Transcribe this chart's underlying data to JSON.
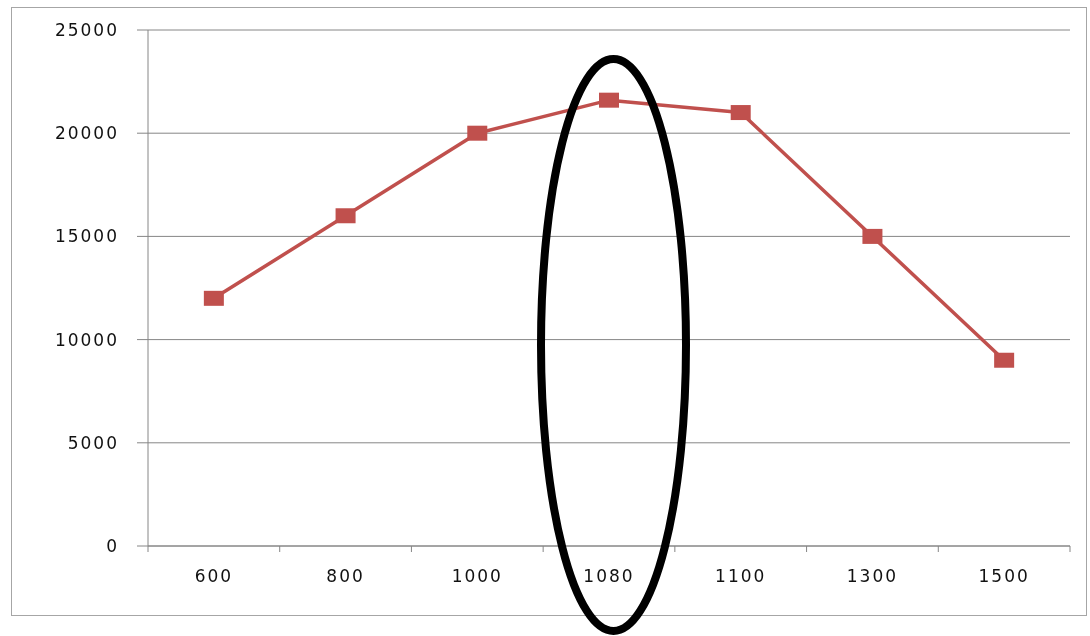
{
  "chart_data": {
    "type": "line",
    "categories": [
      "600",
      "800",
      "1000",
      "1080",
      "1100",
      "1300",
      "1500"
    ],
    "series": [
      {
        "color": "#c0504d",
        "values": [
          12000,
          16000,
          20000,
          21600,
          21000,
          15000,
          9000
        ]
      }
    ],
    "ylim": [
      0,
      25000
    ],
    "yticks": [
      0,
      5000,
      10000,
      15000,
      20000,
      25000
    ],
    "grid": "y",
    "marker": "square"
  }
}
